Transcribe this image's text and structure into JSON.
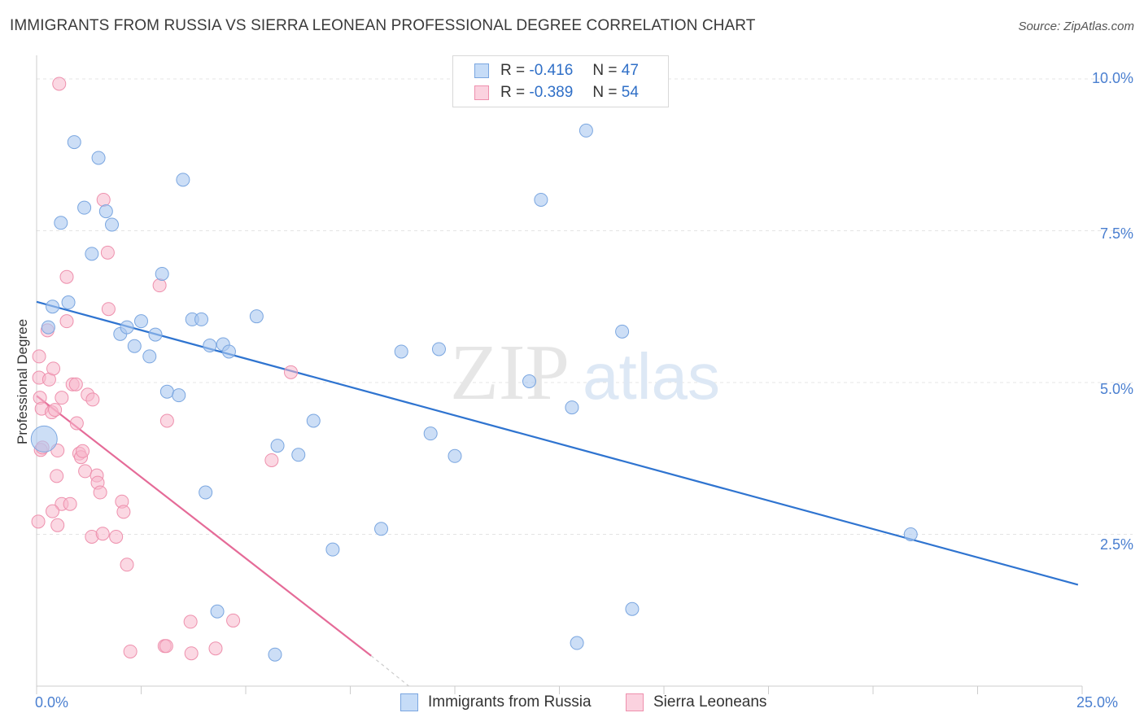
{
  "header": {
    "title": "IMMIGRANTS FROM RUSSIA VS SIERRA LEONEAN PROFESSIONAL DEGREE CORRELATION CHART",
    "source": "Source: ZipAtlas.com"
  },
  "watermark": {
    "zip": "ZIP",
    "atlas": "atlas"
  },
  "stats": [
    {
      "r_label": "R =",
      "r_value": "-0.416",
      "n_label": "N =",
      "n_value": "47",
      "color": "#aac8f0"
    },
    {
      "r_label": "R =",
      "r_value": "-0.389",
      "n_label": "N =",
      "n_value": "54",
      "color": "#f7b8cc"
    }
  ],
  "legend": {
    "series1": "Immigrants from Russia",
    "series2": "Sierra Leoneans"
  },
  "colors": {
    "blue_fill": "#aac8f0",
    "blue_stroke": "#7aa6e0",
    "blue_line": "#2f74d0",
    "pink_fill": "#f7b8cc",
    "pink_stroke": "#ee90ad",
    "pink_line": "#e56b98",
    "tick_text": "#4a7fd0",
    "grid": "#e4e4e4"
  },
  "chart_data": {
    "type": "scatter",
    "title": "IMMIGRANTS FROM RUSSIA VS SIERRA LEONEAN PROFESSIONAL DEGREE CORRELATION CHART",
    "xlabel": "",
    "ylabel": "Professional Degree",
    "xlim": [
      0,
      25
    ],
    "ylim": [
      0,
      10.5
    ],
    "x_tick_labels": [
      "0.0%",
      "25.0%"
    ],
    "y_ticks": [
      2.5,
      5.0,
      7.5,
      10.0
    ],
    "y_tick_labels": [
      "2.5%",
      "5.0%",
      "7.5%",
      "10.0%"
    ],
    "grid": true,
    "legend_position": "bottom-center",
    "series": [
      {
        "name": "Immigrants from Russia",
        "R": -0.416,
        "N": 47,
        "trend": {
          "x": [
            0.0,
            24.9
          ],
          "y": [
            6.33,
            1.67
          ]
        },
        "points": [
          {
            "x": 0.18,
            "y": 4.07,
            "big": true
          },
          {
            "x": 0.28,
            "y": 5.91
          },
          {
            "x": 0.38,
            "y": 6.25
          },
          {
            "x": 0.76,
            "y": 6.32
          },
          {
            "x": 0.58,
            "y": 7.63
          },
          {
            "x": 0.9,
            "y": 8.96
          },
          {
            "x": 1.14,
            "y": 7.88
          },
          {
            "x": 1.32,
            "y": 7.12
          },
          {
            "x": 1.48,
            "y": 8.7
          },
          {
            "x": 1.66,
            "y": 7.82
          },
          {
            "x": 1.8,
            "y": 7.6
          },
          {
            "x": 2.0,
            "y": 5.8
          },
          {
            "x": 2.16,
            "y": 5.91
          },
          {
            "x": 2.34,
            "y": 5.6
          },
          {
            "x": 2.5,
            "y": 6.01
          },
          {
            "x": 2.7,
            "y": 5.43
          },
          {
            "x": 2.84,
            "y": 5.79
          },
          {
            "x": 3.0,
            "y": 6.79
          },
          {
            "x": 3.12,
            "y": 4.85
          },
          {
            "x": 3.4,
            "y": 4.79
          },
          {
            "x": 3.5,
            "y": 8.34
          },
          {
            "x": 3.72,
            "y": 6.04
          },
          {
            "x": 3.94,
            "y": 6.04
          },
          {
            "x": 4.14,
            "y": 5.61
          },
          {
            "x": 4.46,
            "y": 5.63
          },
          {
            "x": 4.6,
            "y": 5.51
          },
          {
            "x": 5.26,
            "y": 6.09
          },
          {
            "x": 5.7,
            "y": 0.52
          },
          {
            "x": 5.76,
            "y": 3.96
          },
          {
            "x": 6.26,
            "y": 3.81
          },
          {
            "x": 6.62,
            "y": 4.37
          },
          {
            "x": 4.32,
            "y": 1.23
          },
          {
            "x": 4.04,
            "y": 3.19
          },
          {
            "x": 7.08,
            "y": 2.25
          },
          {
            "x": 8.24,
            "y": 2.59
          },
          {
            "x": 8.72,
            "y": 5.51
          },
          {
            "x": 9.42,
            "y": 4.16
          },
          {
            "x": 9.62,
            "y": 5.55
          },
          {
            "x": 10.0,
            "y": 3.79
          },
          {
            "x": 11.78,
            "y": 5.02
          },
          {
            "x": 12.06,
            "y": 8.01
          },
          {
            "x": 12.8,
            "y": 4.59
          },
          {
            "x": 12.92,
            "y": 0.71
          },
          {
            "x": 13.14,
            "y": 9.15
          },
          {
            "x": 14.0,
            "y": 5.84
          },
          {
            "x": 14.24,
            "y": 1.27
          },
          {
            "x": 20.9,
            "y": 2.5
          }
        ]
      },
      {
        "name": "Sierra Leoneans",
        "R": -0.389,
        "N": 54,
        "trend": {
          "x": [
            0.0,
            8.0
          ],
          "y": [
            4.78,
            0.5
          ]
        },
        "trend_dashed": {
          "x": [
            8.0,
            8.9
          ],
          "y": [
            0.5,
            0.0
          ]
        },
        "points": [
          {
            "x": 0.54,
            "y": 9.92
          },
          {
            "x": 0.06,
            "y": 5.43
          },
          {
            "x": 0.06,
            "y": 5.08
          },
          {
            "x": 0.08,
            "y": 4.75
          },
          {
            "x": 0.12,
            "y": 4.57
          },
          {
            "x": 0.1,
            "y": 3.89
          },
          {
            "x": 0.14,
            "y": 3.93
          },
          {
            "x": 0.26,
            "y": 5.86
          },
          {
            "x": 0.3,
            "y": 5.05
          },
          {
            "x": 0.36,
            "y": 4.51
          },
          {
            "x": 0.4,
            "y": 5.23
          },
          {
            "x": 0.44,
            "y": 4.55
          },
          {
            "x": 0.5,
            "y": 3.88
          },
          {
            "x": 0.48,
            "y": 3.46
          },
          {
            "x": 0.6,
            "y": 4.75
          },
          {
            "x": 0.6,
            "y": 3.0
          },
          {
            "x": 0.72,
            "y": 6.74
          },
          {
            "x": 0.72,
            "y": 6.01
          },
          {
            "x": 0.8,
            "y": 3.0
          },
          {
            "x": 0.86,
            "y": 4.97
          },
          {
            "x": 0.94,
            "y": 4.97
          },
          {
            "x": 0.96,
            "y": 4.33
          },
          {
            "x": 1.02,
            "y": 3.83
          },
          {
            "x": 1.06,
            "y": 3.77
          },
          {
            "x": 1.1,
            "y": 3.87
          },
          {
            "x": 1.16,
            "y": 3.54
          },
          {
            "x": 1.22,
            "y": 4.8
          },
          {
            "x": 1.32,
            "y": 2.46
          },
          {
            "x": 1.34,
            "y": 4.72
          },
          {
            "x": 1.44,
            "y": 3.47
          },
          {
            "x": 1.46,
            "y": 3.35
          },
          {
            "x": 1.52,
            "y": 3.19
          },
          {
            "x": 1.58,
            "y": 2.51
          },
          {
            "x": 1.6,
            "y": 8.01
          },
          {
            "x": 1.7,
            "y": 7.14
          },
          {
            "x": 1.72,
            "y": 6.21
          },
          {
            "x": 1.9,
            "y": 2.46
          },
          {
            "x": 2.04,
            "y": 3.04
          },
          {
            "x": 2.08,
            "y": 2.87
          },
          {
            "x": 2.16,
            "y": 2.0
          },
          {
            "x": 0.38,
            "y": 2.88
          },
          {
            "x": 0.5,
            "y": 2.65
          },
          {
            "x": 2.24,
            "y": 0.57
          },
          {
            "x": 2.94,
            "y": 6.6
          },
          {
            "x": 3.06,
            "y": 0.66
          },
          {
            "x": 3.1,
            "y": 0.66
          },
          {
            "x": 3.12,
            "y": 4.37
          },
          {
            "x": 3.68,
            "y": 1.06
          },
          {
            "x": 3.7,
            "y": 0.54
          },
          {
            "x": 4.28,
            "y": 0.62
          },
          {
            "x": 4.7,
            "y": 1.08
          },
          {
            "x": 5.62,
            "y": 3.72
          },
          {
            "x": 6.08,
            "y": 5.17
          },
          {
            "x": 0.04,
            "y": 2.71
          }
        ]
      }
    ]
  }
}
